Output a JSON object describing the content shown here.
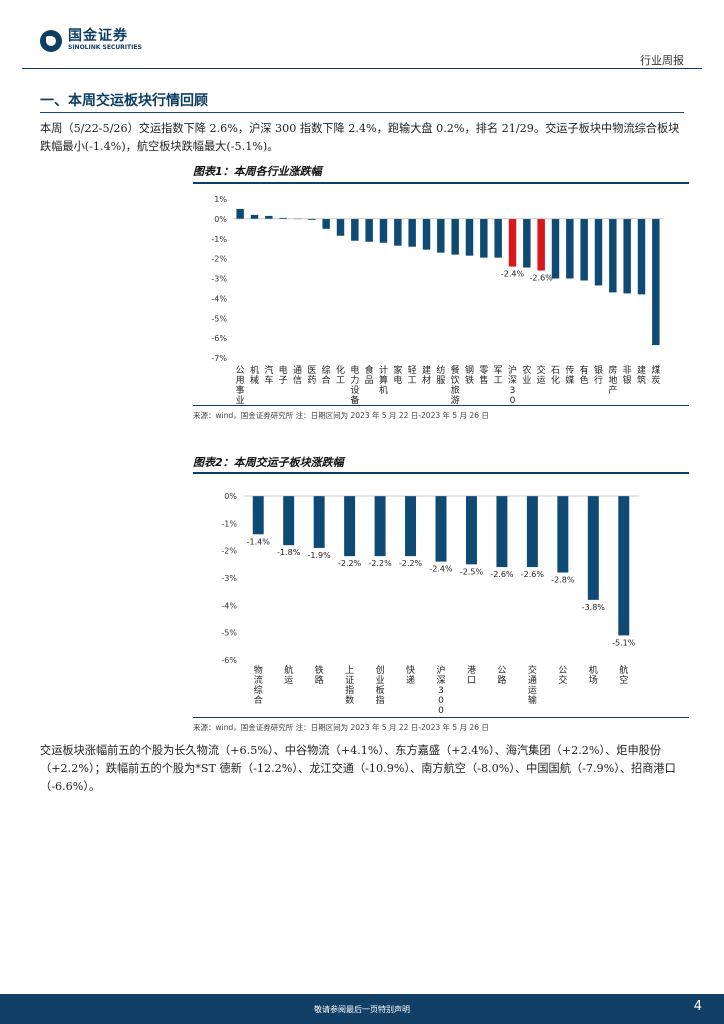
{
  "header": {
    "logo_cn": "国金证券",
    "logo_en": "SINOLINK SECURITIES",
    "label": "行业周报"
  },
  "section": {
    "title": "一、本周交运板块行情回顾"
  },
  "para1": "本周（5/22-5/26）交运指数下降 2.6%，沪深 300 指数下降 2.4%，跑输大盘 0.2%，排名 21/29。交运子板块中物流综合板块跌幅最小(-1.4%)，航空板块跌幅最大(-5.1%)。",
  "fig1": {
    "title": "图表1：本周各行业涨跌幅",
    "source": "来源：wind，国金证券研究所    注：日期区间为 2023 年 5 月 22 日-2023 年 5 月 26 日"
  },
  "fig2": {
    "title": "图表2：本周交运子板块涨跌幅",
    "source": "来源：wind，国金证券研究所    注：日期区间为 2023 年 5 月 22 日-2023 年 5 月 26 日"
  },
  "para2": "交运板块涨幅前五的个股为长久物流（+6.5%）、中谷物流（+4.1%）、东方嘉盛（+2.4%）、海汽集团（+2.2%）、炬申股份（+2.2%）；跌幅前五的个股为*ST 德新（-12.2%）、龙江交通（-10.9%）、南方航空（-8.0%）、中国国航（-7.9%）、招商港口（-6.6%）。",
  "footer": {
    "text": "敬请参阅最后一页特别声明",
    "page": "4"
  },
  "colors": {
    "bar": "#0f4a75",
    "highlight": "#d7191c"
  },
  "chart_data": [
    {
      "type": "bar",
      "title": "图表1：本周各行业涨跌幅",
      "ylim": [
        -7,
        1
      ],
      "yticks": [
        "1%",
        "0%",
        "-1%",
        "-2%",
        "-3%",
        "-4%",
        "-5%",
        "-6%",
        "-7%"
      ],
      "categories": [
        "公用事业",
        "机械",
        "汽车",
        "电子",
        "通信",
        "医药",
        "综合",
        "化工",
        "电力设备",
        "食品",
        "计算机",
        "家电",
        "轻工",
        "建材",
        "纺服",
        "餐饮旅游",
        "钢铁",
        "零售",
        "军工",
        "沪深300",
        "农业",
        "交运",
        "石化",
        "传媒",
        "有色",
        "银行",
        "房地产",
        "非银",
        "建筑",
        "煤炭"
      ],
      "values": [
        0.5,
        0.2,
        0.15,
        0.05,
        0.02,
        -0.05,
        -0.5,
        -0.85,
        -1.1,
        -1.15,
        -1.2,
        -1.35,
        -1.4,
        -1.55,
        -1.7,
        -1.8,
        -1.85,
        -1.95,
        -1.95,
        -2.4,
        -2.45,
        -2.6,
        -3.0,
        -3.0,
        -3.1,
        -3.35,
        -3.7,
        -3.75,
        -3.8,
        -6.35
      ],
      "highlight": [
        "沪深300",
        "交运"
      ],
      "data_labels": {
        "沪深300": "-2.4%",
        "交运": "-2.6%"
      }
    },
    {
      "type": "bar",
      "title": "图表2：本周交运子板块涨跌幅",
      "ylim": [
        -6,
        0
      ],
      "yticks": [
        "0%",
        "-1%",
        "-2%",
        "-3%",
        "-4%",
        "-5%",
        "-6%"
      ],
      "categories": [
        "物流综合",
        "航运",
        "铁路",
        "上证指数",
        "创业板指",
        "快递",
        "沪深300",
        "港口",
        "公路",
        "交通运输",
        "公交",
        "机场",
        "航空"
      ],
      "values": [
        -1.4,
        -1.8,
        -1.9,
        -2.2,
        -2.2,
        -2.2,
        -2.4,
        -2.5,
        -2.6,
        -2.6,
        -2.8,
        -3.8,
        -5.1
      ],
      "labels": [
        "-1.4%",
        "-1.8%",
        "-1.9%",
        "-2.2%",
        "-2.2%",
        "-2.2%",
        "-2.4%",
        "-2.5%",
        "-2.6%",
        "-2.6%",
        "-2.8%",
        "-3.8%",
        "-5.1%"
      ]
    }
  ]
}
